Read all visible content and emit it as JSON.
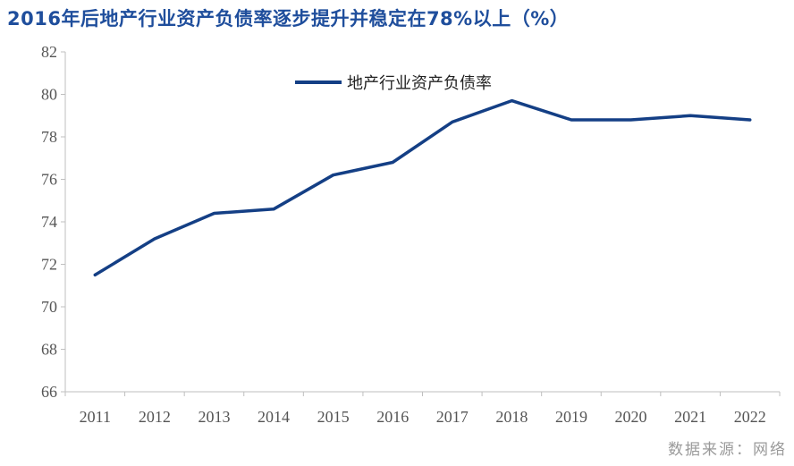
{
  "title": "2016年后地产行业资产负债率逐步提升并稳定在78%以上（%）",
  "source": "数据来源：网络",
  "colors": {
    "title": "#1f4e9c",
    "line": "#143f85",
    "axis": "#bfbfbf",
    "tick_text": "#555555",
    "source": "#9a9a9a"
  },
  "chart_data": {
    "type": "line",
    "categories": [
      "2011",
      "2012",
      "2013",
      "2014",
      "2015",
      "2016",
      "2017",
      "2018",
      "2019",
      "2020",
      "2021",
      "2022"
    ],
    "series": [
      {
        "name": "地产行业资产负债率",
        "values": [
          71.5,
          73.2,
          74.4,
          74.6,
          76.2,
          76.8,
          78.7,
          79.7,
          78.8,
          78.8,
          79.0,
          78.8
        ]
      }
    ],
    "ylim": [
      66,
      82
    ],
    "yticks": [
      66,
      68,
      70,
      72,
      74,
      76,
      78,
      80,
      82
    ],
    "grid": false,
    "legend_position": "top-center"
  }
}
